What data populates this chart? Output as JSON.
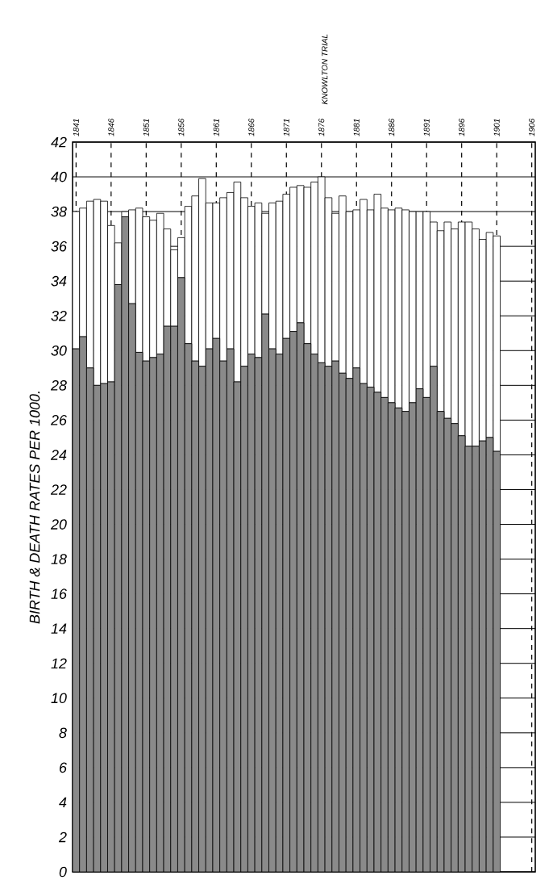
{
  "chart_data": {
    "type": "bar",
    "ylabel": "BIRTH & DEATH RATES PER 1000.",
    "x": [
      1841,
      1842,
      1843,
      1844,
      1845,
      1846,
      1847,
      1848,
      1849,
      1850,
      1851,
      1852,
      1853,
      1854,
      1855,
      1856,
      1857,
      1858,
      1859,
      1860,
      1861,
      1862,
      1863,
      1864,
      1865,
      1866,
      1867,
      1868,
      1869,
      1870,
      1871,
      1872,
      1873,
      1874,
      1875,
      1876,
      1877,
      1878,
      1879,
      1880,
      1881,
      1882,
      1883,
      1884,
      1885,
      1886,
      1887,
      1888,
      1889,
      1890,
      1891,
      1892,
      1893,
      1894,
      1895,
      1896,
      1897,
      1898,
      1899,
      1900,
      1901
    ],
    "series": [
      {
        "color": "#8a8a8a",
        "values": [
          30.1,
          30.8,
          29.0,
          28.0,
          28.1,
          28.2,
          33.8,
          37.7,
          32.7,
          29.9,
          29.4,
          29.6,
          29.8,
          31.4,
          31.4,
          34.2,
          30.4,
          29.4,
          29.1,
          30.1,
          30.7,
          29.4,
          30.1,
          28.2,
          29.1,
          29.8,
          29.6,
          32.1,
          30.1,
          29.8,
          30.7,
          31.1,
          31.6,
          30.4,
          29.8,
          29.3,
          29.1,
          29.4,
          28.7,
          28.4,
          29.0,
          28.1,
          27.9,
          27.6,
          27.3,
          27.0,
          26.7,
          26.5,
          27.0,
          27.8,
          27.3,
          29.1,
          26.5,
          26.1,
          25.8,
          25.1,
          24.5,
          24.5,
          24.8,
          25.0,
          24.2
        ]
      },
      {
        "color": "#ffffff",
        "values": [
          7.9,
          7.4,
          9.6,
          10.7,
          10.5,
          9.0,
          2.4,
          0.3,
          5.4,
          8.3,
          8.3,
          7.9,
          8.1,
          5.6,
          4.4,
          2.3,
          7.9,
          9.5,
          10.8,
          8.4,
          7.8,
          9.4,
          9.0,
          11.5,
          9.7,
          8.5,
          8.9,
          5.8,
          8.4,
          8.8,
          8.3,
          8.3,
          7.9,
          9.0,
          9.9,
          10.7,
          9.7,
          8.5,
          10.2,
          9.6,
          9.1,
          10.6,
          10.2,
          11.4,
          10.9,
          11.1,
          11.5,
          11.6,
          11.0,
          10.2,
          10.7,
          8.3,
          10.4,
          11.3,
          11.2,
          12.3,
          12.9,
          12.5,
          11.6,
          11.8,
          12.4
        ]
      }
    ],
    "stacked": true,
    "xlim": [
      1840.5,
      1906.5
    ],
    "xticks": [
      1841,
      1846,
      1851,
      1856,
      1861,
      1866,
      1871,
      1876,
      1881,
      1886,
      1891,
      1896,
      1901,
      1906
    ],
    "ylim": [
      0,
      42
    ],
    "yticks": [
      0,
      2,
      4,
      6,
      8,
      10,
      12,
      14,
      16,
      18,
      20,
      22,
      24,
      26,
      28,
      30,
      32,
      34,
      36,
      38,
      40,
      42
    ],
    "grid": true,
    "annotations": [
      "KNOWLTON TRIAL"
    ]
  }
}
